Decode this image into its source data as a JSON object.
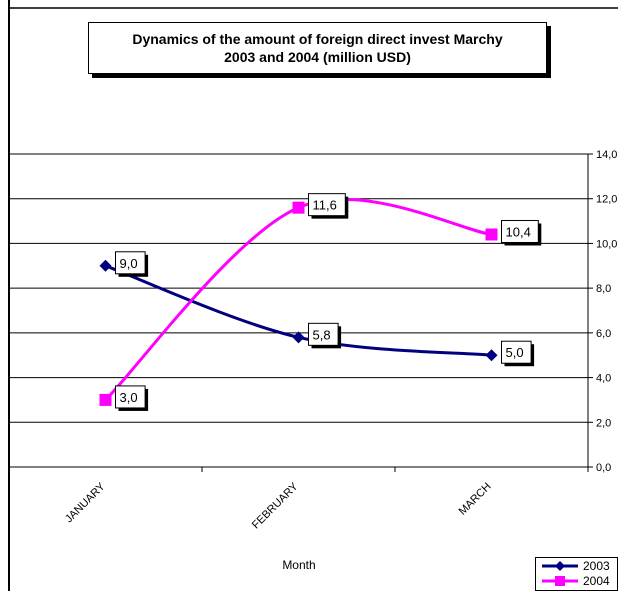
{
  "chart_data": {
    "type": "line",
    "title_lines": [
      "Dynamics of the amount of foreign direct invest Marchy",
      "2003 and  2004 (million USD)"
    ],
    "xlabel": "Month",
    "ylabel": "",
    "categories": [
      "JANUARY",
      "FEBRUARY",
      "MARCH"
    ],
    "y_tick_labels": [
      "0,0",
      "2,0",
      "4,0",
      "6,0",
      "8,0",
      "10,0",
      "12,0",
      "14,0"
    ],
    "ylim": [
      0,
      14
    ],
    "grid": true,
    "axis_position": "right",
    "legend_position": "bottom-right",
    "series": [
      {
        "name": "2003",
        "values": [
          9.0,
          5.8,
          5.0
        ],
        "labels": [
          "9,0",
          "5,8",
          "5,0"
        ],
        "color": "#000080",
        "marker": "diamond",
        "smooth": true
      },
      {
        "name": "2004",
        "values": [
          3.0,
          11.6,
          10.4
        ],
        "labels": [
          "3,0",
          "11,6",
          "10,4"
        ],
        "color": "#ff00ff",
        "marker": "square",
        "smooth": true
      }
    ]
  }
}
